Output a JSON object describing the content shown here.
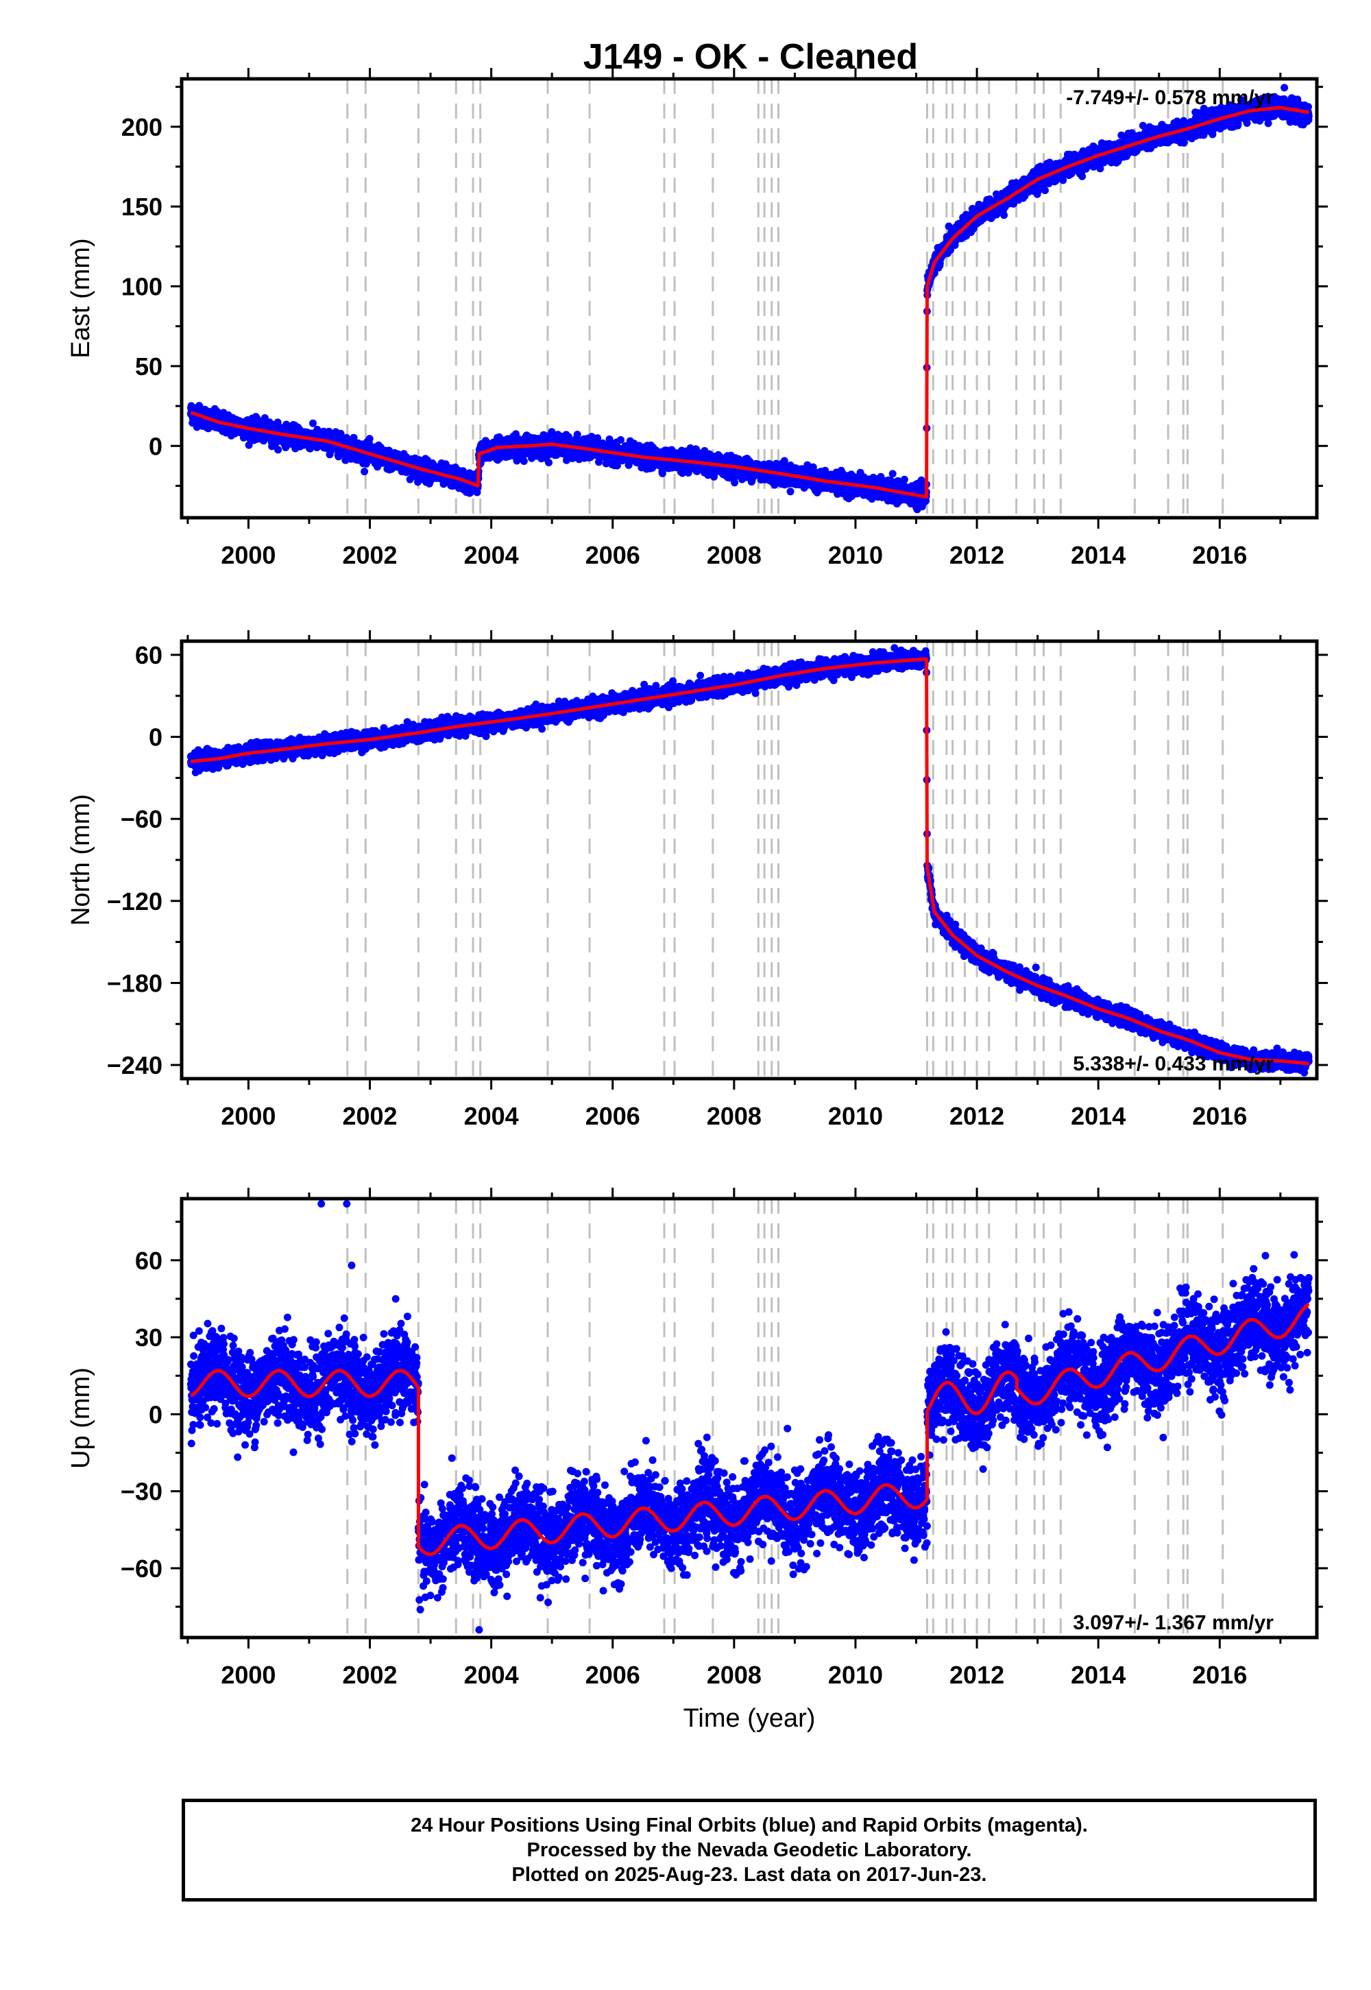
{
  "title": "J149  - OK - Cleaned",
  "footer": {
    "line1": "24 Hour Positions Using Final Orbits (blue) and Rapid Orbits (magenta).",
    "line2": "Processed by the Nevada Geodetic Laboratory.",
    "line3": "Plotted on 2025-Aug-23. Last data on 2017-Jun-23."
  },
  "colors": {
    "data": "#0000ff",
    "model": "#ff0000",
    "event_lines": "#c0c0c0",
    "frame": "#000000"
  },
  "chart_data": [
    {
      "type": "scatter",
      "ylabel": "East (mm)",
      "xlim": [
        1998.9,
        2017.6
      ],
      "ylim": [
        -45,
        230
      ],
      "yticks": [
        0,
        50,
        100,
        150,
        200
      ],
      "xticks": [
        2000,
        2002,
        2004,
        2006,
        2008,
        2010,
        2012,
        2014,
        2016
      ],
      "xlabel": "",
      "rate_label": "-7.749+/- 0.578 mm/yr",
      "rate_position": "top-right",
      "event_lines": [
        2001.63,
        2001.93,
        2002.8,
        2003.42,
        2003.7,
        2003.82,
        2004.93,
        2005.62,
        2006.85,
        2007.02,
        2007.65,
        2008.4,
        2008.5,
        2008.62,
        2008.73,
        2011.18,
        2011.28,
        2011.5,
        2011.6,
        2011.8,
        2012.0,
        2012.2,
        2012.65,
        2012.95,
        2013.1,
        2013.38,
        2014.6,
        2015.15,
        2015.4,
        2015.47,
        2016.05
      ],
      "model": [
        [
          1999.05,
          21
        ],
        [
          1999.5,
          15
        ],
        [
          2000.0,
          11
        ],
        [
          2000.6,
          7
        ],
        [
          2001.3,
          3
        ],
        [
          2002.0,
          -5
        ],
        [
          2002.8,
          -14
        ],
        [
          2003.5,
          -21
        ],
        [
          2003.78,
          -25
        ],
        [
          2003.8,
          -5
        ],
        [
          2004.1,
          -1
        ],
        [
          2004.6,
          0
        ],
        [
          2005.0,
          1
        ],
        [
          2005.6,
          -2
        ],
        [
          2006.5,
          -7
        ],
        [
          2007.3,
          -10
        ],
        [
          2008.0,
          -13
        ],
        [
          2008.7,
          -17
        ],
        [
          2009.5,
          -22
        ],
        [
          2010.3,
          -26
        ],
        [
          2011.17,
          -32
        ],
        [
          2011.18,
          100
        ],
        [
          2011.3,
          115
        ],
        [
          2011.6,
          130
        ],
        [
          2012.0,
          144
        ],
        [
          2012.5,
          155
        ],
        [
          2013.0,
          167
        ],
        [
          2013.5,
          175
        ],
        [
          2014.0,
          182
        ],
        [
          2014.5,
          188
        ],
        [
          2015.0,
          194
        ],
        [
          2015.5,
          199
        ],
        [
          2016.0,
          205
        ],
        [
          2016.5,
          210
        ],
        [
          2017.0,
          212
        ],
        [
          2017.47,
          209
        ]
      ],
      "scatter_sigma": 3
    },
    {
      "type": "scatter",
      "ylabel": "North (mm)",
      "xlim": [
        1998.9,
        2017.6
      ],
      "ylim": [
        -250,
        70
      ],
      "yticks": [
        60,
        0,
        -60,
        -120,
        -180,
        -240
      ],
      "xticks": [
        2000,
        2002,
        2004,
        2006,
        2008,
        2010,
        2012,
        2014,
        2016
      ],
      "xlabel": "",
      "rate_label": "5.338+/- 0.433 mm/yr",
      "rate_position": "bottom-right",
      "model": [
        [
          1999.05,
          -18
        ],
        [
          1999.5,
          -16
        ],
        [
          2000.0,
          -12
        ],
        [
          2000.6,
          -9
        ],
        [
          2001.3,
          -5
        ],
        [
          2002.0,
          -2
        ],
        [
          2002.8,
          3
        ],
        [
          2003.5,
          8
        ],
        [
          2004.2,
          12
        ],
        [
          2005.0,
          17
        ],
        [
          2006.0,
          24
        ],
        [
          2007.0,
          31
        ],
        [
          2008.0,
          38
        ],
        [
          2008.8,
          45
        ],
        [
          2009.5,
          50
        ],
        [
          2010.3,
          54
        ],
        [
          2011.17,
          57
        ],
        [
          2011.18,
          -95
        ],
        [
          2011.3,
          -128
        ],
        [
          2011.6,
          -145
        ],
        [
          2012.0,
          -160
        ],
        [
          2012.5,
          -172
        ],
        [
          2013.0,
          -182
        ],
        [
          2013.5,
          -190
        ],
        [
          2014.0,
          -199
        ],
        [
          2014.5,
          -206
        ],
        [
          2015.0,
          -215
        ],
        [
          2015.5,
          -222
        ],
        [
          2016.0,
          -231
        ],
        [
          2016.5,
          -236
        ],
        [
          2017.0,
          -237
        ],
        [
          2017.47,
          -239
        ]
      ],
      "scatter_sigma": 3
    },
    {
      "type": "scatter",
      "ylabel": "Up (mm)",
      "xlim": [
        1998.9,
        2017.6
      ],
      "ylim": [
        -87,
        84
      ],
      "yticks": [
        60,
        30,
        0,
        -30,
        -60
      ],
      "xticks": [
        2000,
        2002,
        2004,
        2006,
        2008,
        2010,
        2012,
        2014,
        2016
      ],
      "xlabel": "Time (year)",
      "rate_label": "3.097+/- 1.367 mm/yr",
      "rate_position": "bottom-right",
      "model_segments": [
        {
          "x_start": 1999.05,
          "x_end": 2002.8,
          "base_start": 12,
          "base_end": 12,
          "amplitude": 5
        },
        {
          "x_start": 2002.8,
          "x_end": 2011.18,
          "base_start": -50,
          "base_end": -31,
          "amplitude": 5
        },
        {
          "x_start": 2011.18,
          "x_end": 2012.66,
          "base_start": 4,
          "base_end": 10,
          "amplitude": 7
        },
        {
          "x_start": 2012.66,
          "x_end": 2017.47,
          "base_start": 7,
          "base_end": 38,
          "amplitude": 5
        }
      ],
      "scatter_sigma": 8,
      "outliers": [
        [
          2001.2,
          82
        ],
        [
          2001.62,
          82
        ],
        [
          2001.7,
          58
        ],
        [
          2003.8,
          -84
        ]
      ]
    }
  ]
}
